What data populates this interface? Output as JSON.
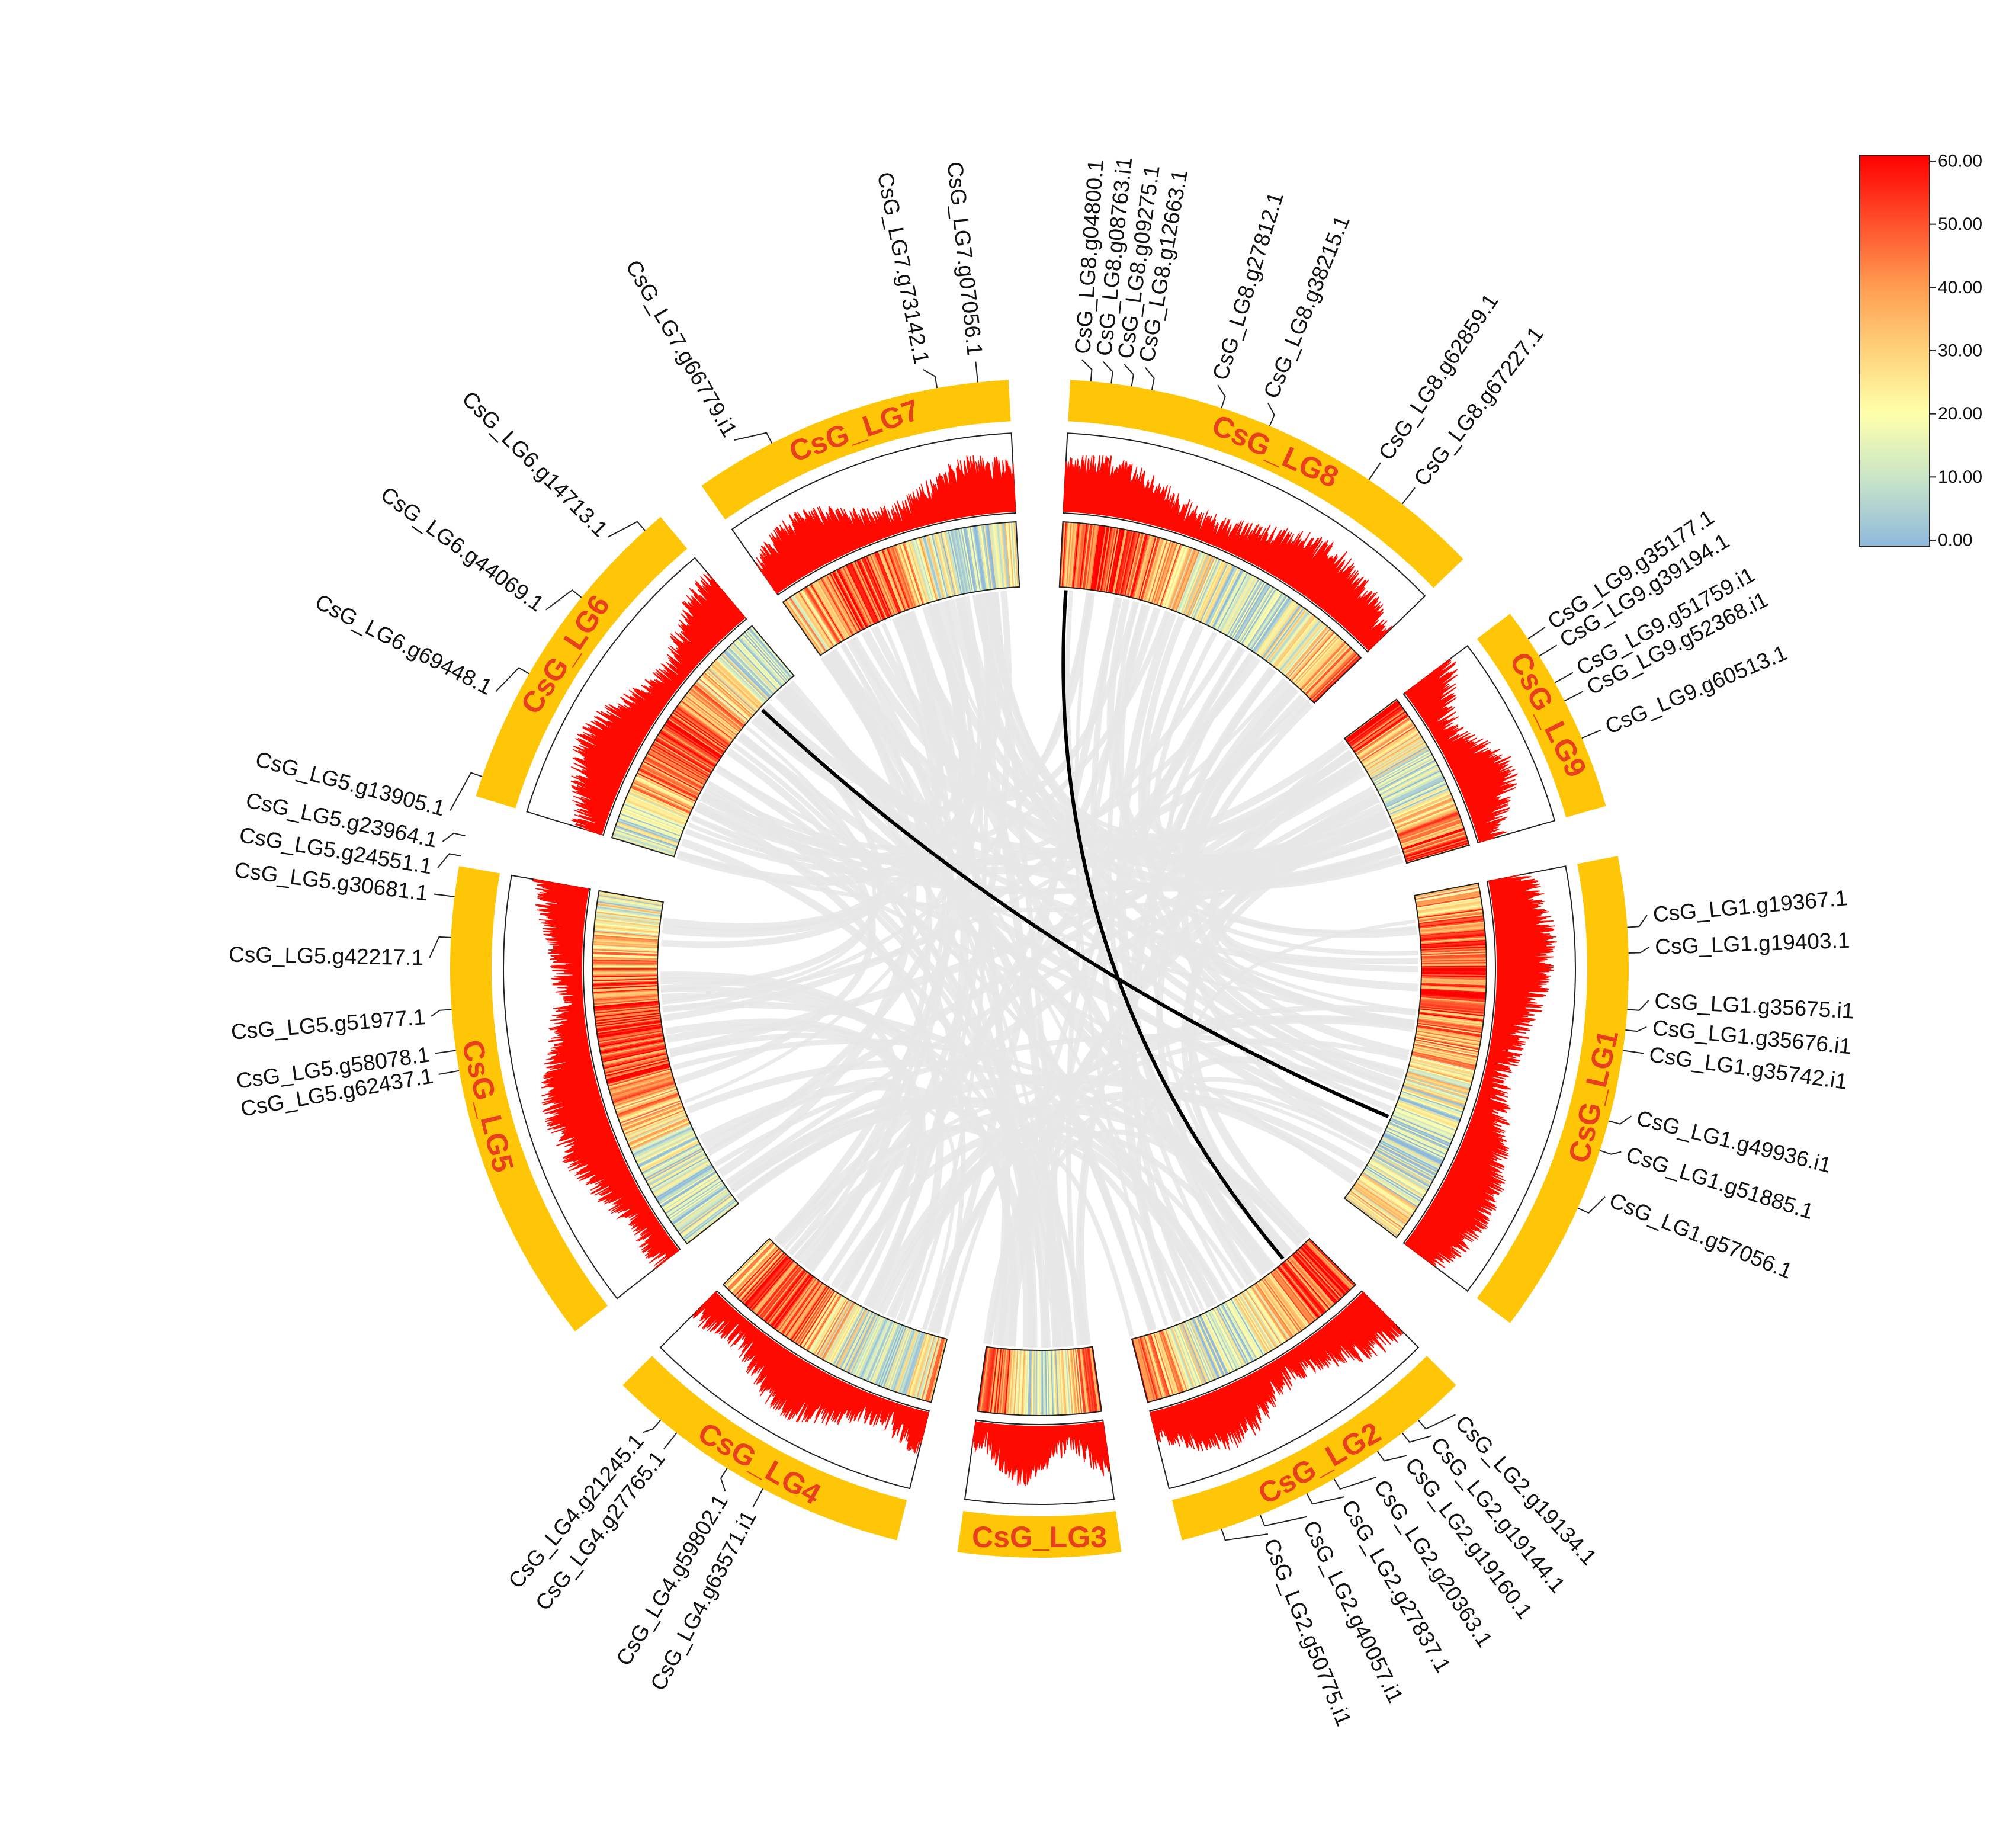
{
  "figure": {
    "type": "circos",
    "colors": {
      "ideogram": "#ffc608",
      "chrom_label": "#e8401c",
      "histogram": "#ff0a00",
      "link_background": "#e6e6e6",
      "link_highlight": "#000000",
      "heatmap_low": "#8fb9dc",
      "heatmap_mid": "#ffffaa",
      "heatmap_high": "#ff0000"
    },
    "chromosomes": [
      {
        "name": "CsG_LG1",
        "genes": [
          "CsG_LG1.g19367.1",
          "CsG_LG1.g19403.1",
          "CsG_LG1.g35675.i1",
          "CsG_LG1.g35676.i1",
          "CsG_LG1.g35742.i1",
          "CsG_LG1.g49936.i1",
          "CsG_LG1.g51885.1",
          "CsG_LG1.g57056.1"
        ]
      },
      {
        "name": "CsG_LG2",
        "genes": [
          "CsG_LG2.g19134.1",
          "CsG_LG2.g19144.1",
          "CsG_LG2.g19160.1",
          "CsG_LG2.g20363.1",
          "CsG_LG2.g27837.1",
          "CsG_LG2.g40057.i1",
          "CsG_LG2.g50775.i1"
        ]
      },
      {
        "name": "CsG_LG3",
        "genes": []
      },
      {
        "name": "CsG_LG4",
        "genes": [
          "CsG_LG4.g63571.i1",
          "CsG_LG4.g59802.1",
          "CsG_LG4.g27765.1",
          "CsG_LG4.g21245.1"
        ]
      },
      {
        "name": "CsG_LG5",
        "genes": [
          "CsG_LG5.g62437.1",
          "CsG_LG5.g58078.1",
          "CsG_LG5.g51977.1",
          "CsG_LG5.g42217.1",
          "CsG_LG5.g30681.1",
          "CsG_LG5.g24551.1",
          "CsG_LG5.g23964.1",
          "CsG_LG5.g13905.1"
        ]
      },
      {
        "name": "CsG_LG6",
        "genes": [
          "CsG_LG6.g69448.1",
          "CsG_LG6.g44069.1",
          "CsG_LG6.g14713.1"
        ]
      },
      {
        "name": "CsG_LG7",
        "genes": [
          "CsG_LG7.g66779.i1",
          "CsG_LG7.g73142.1",
          "CsG_LG7.g07056.1"
        ]
      },
      {
        "name": "CsG_LG8",
        "genes": [
          "CsG_LG8.g04800.1",
          "CsG_LG8.g08763.i1",
          "CsG_LG8.g09275.1",
          "CsG_LG8.g12663.1",
          "CsG_LG8.g27812.1",
          "CsG_LG8.g38215.1",
          "CsG_LG8.g62859.1",
          "CsG_LG8.g67227.1"
        ]
      },
      {
        "name": "CsG_LG9",
        "genes": [
          "CsG_LG9.g35177.1",
          "CsG_LG9.g39194.1",
          "CsG_LG9.g51759.i1",
          "CsG_LG9.g52368.i1",
          "CsG_LG9.g60513.1"
        ]
      }
    ],
    "highlight_links": [
      {
        "from": "CsG_LG6",
        "to": "CsG_LG1"
      },
      {
        "from": "CsG_LG8",
        "to": "CsG_LG2"
      }
    ],
    "legend": {
      "ticks": [
        "60.00",
        "50.00",
        "40.00",
        "30.00",
        "20.00",
        "10.00",
        "0.00"
      ]
    }
  }
}
